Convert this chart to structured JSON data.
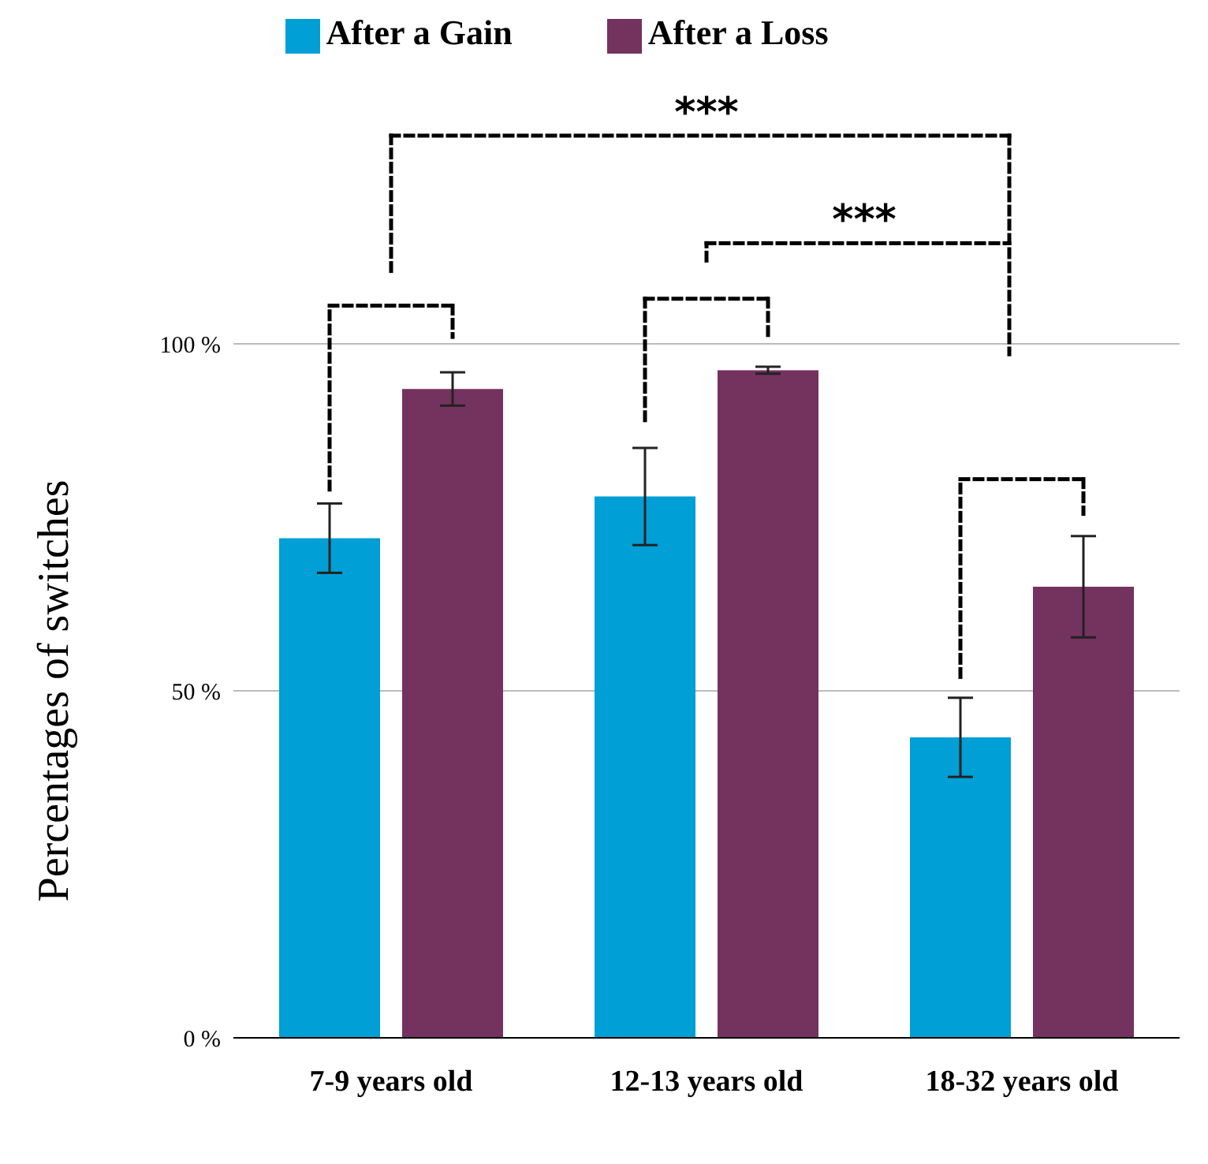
{
  "chart_data": {
    "type": "bar",
    "ylabel": "Percentages of switches",
    "categories": [
      "7-9 years old",
      "12-13 years old",
      "18-32 years old"
    ],
    "series": [
      {
        "name": "After a Gain",
        "color": "#009fd6",
        "values": [
          72,
          78,
          43.3
        ],
        "errors": [
          5,
          7,
          5.7
        ]
      },
      {
        "name": "After a Loss",
        "color": "#74325f",
        "values": [
          93.5,
          96.2,
          65
        ],
        "errors": [
          2.4,
          0.5,
          7.3
        ]
      }
    ],
    "ylim": [
      0,
      100
    ],
    "yticks": [
      {
        "value": 0,
        "label": "0 %"
      },
      {
        "value": 50,
        "label": "50 %"
      },
      {
        "value": 100,
        "label": "100 %"
      }
    ],
    "grid": "y",
    "legend": "top",
    "annotations": [
      "***",
      "***"
    ]
  }
}
